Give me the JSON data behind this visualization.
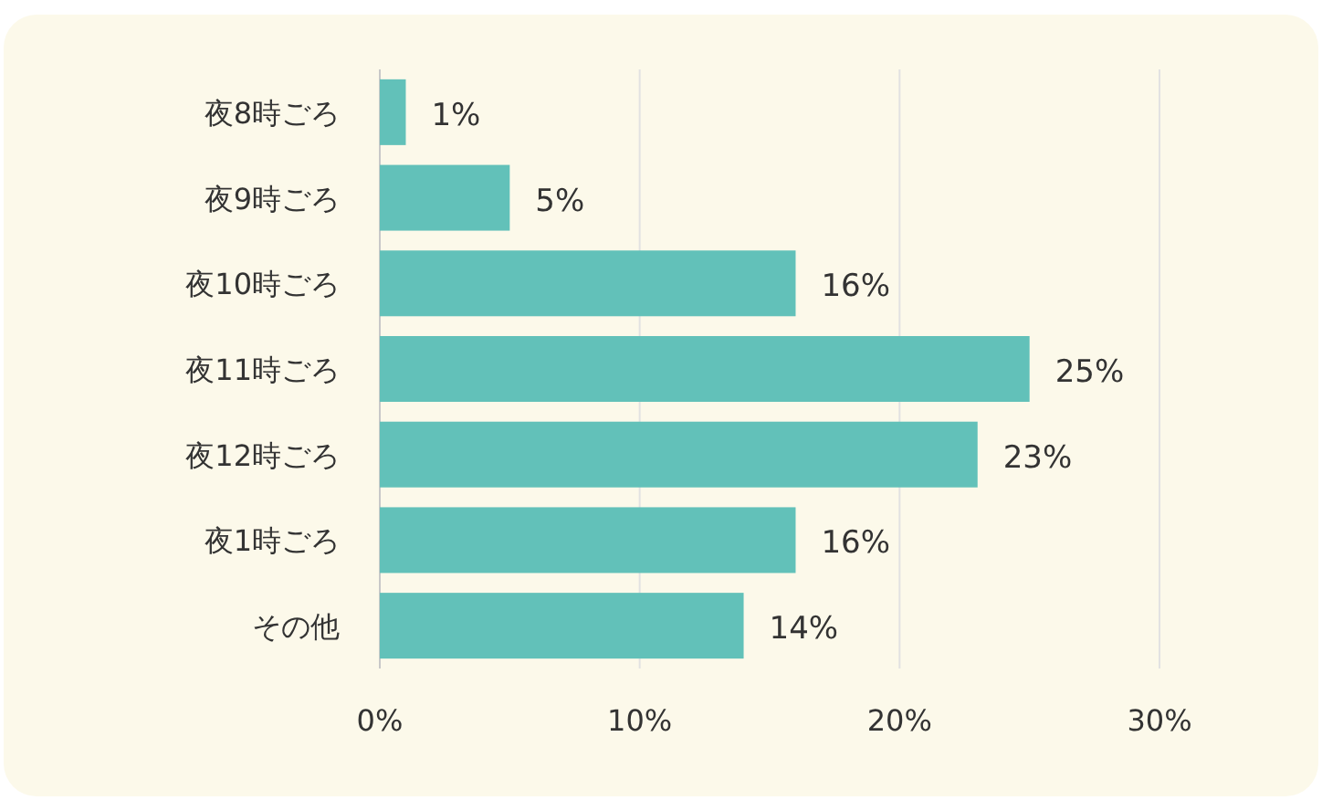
{
  "chart_data": {
    "type": "bar",
    "orientation": "horizontal",
    "categories": [
      "夜8時ごろ",
      "夜9時ごろ",
      "夜10時ごろ",
      "夜11時ごろ",
      "夜12時ごろ",
      "夜1時ごろ",
      "その他"
    ],
    "values": [
      1,
      5,
      16,
      25,
      23,
      16,
      14
    ],
    "value_labels": [
      "1%",
      "5%",
      "16%",
      "25%",
      "23%",
      "16%",
      "14%"
    ],
    "color": "#62c1b9",
    "xlim": [
      0,
      30
    ],
    "xticks": [
      {
        "value": 0,
        "label": "0%"
      },
      {
        "value": 10,
        "label": "10%"
      },
      {
        "value": 20,
        "label": "20%"
      },
      {
        "value": 30,
        "label": "30%"
      }
    ],
    "grid": "x"
  }
}
